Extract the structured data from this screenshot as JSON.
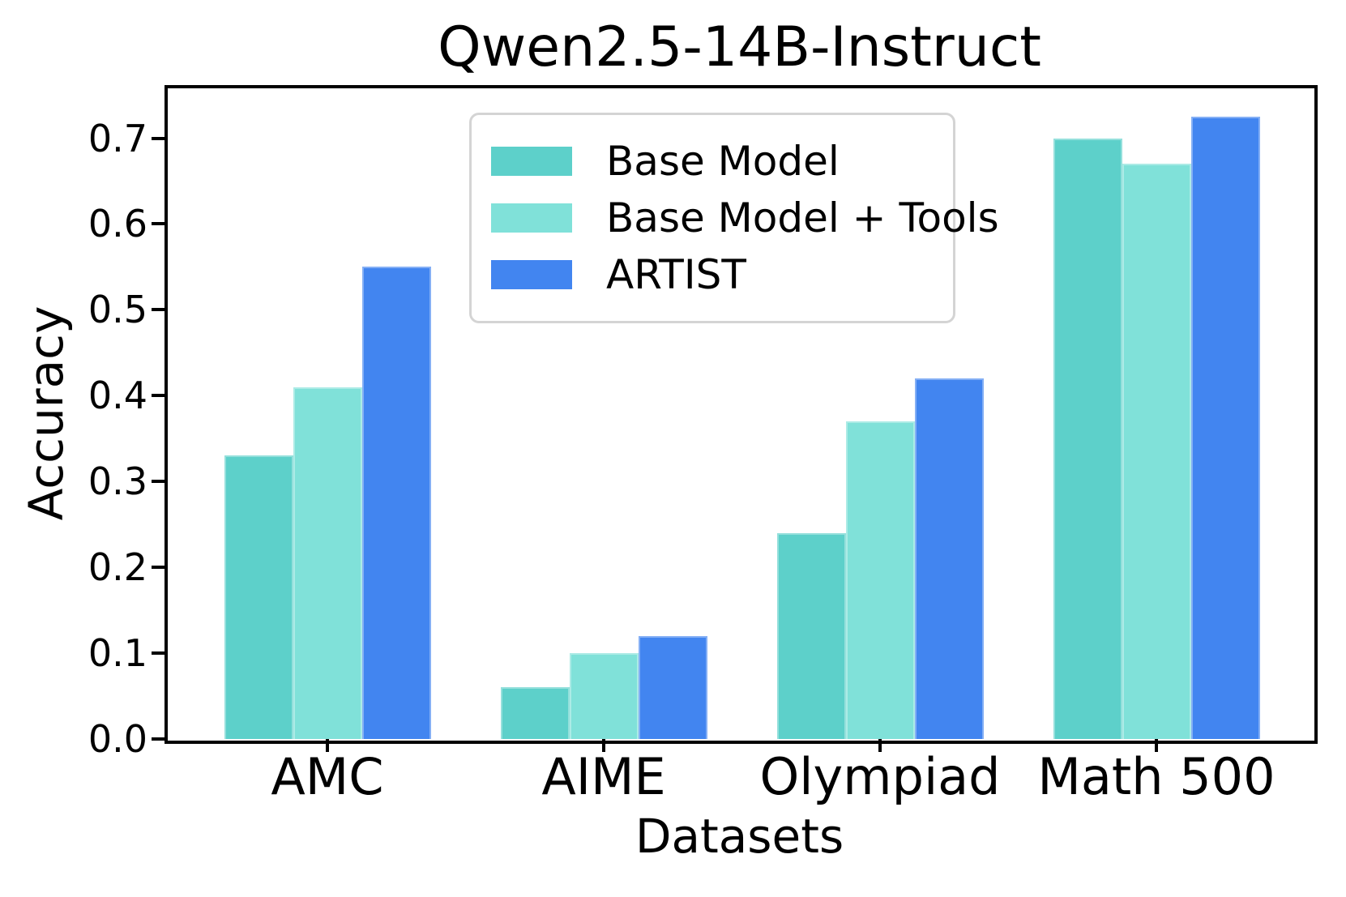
{
  "chart_data": {
    "type": "bar",
    "title": "Qwen2.5-14B-Instruct",
    "xlabel": "Datasets",
    "ylabel": "Accuracy",
    "categories": [
      "AMC",
      "AIME",
      "Olympiad",
      "Math 500"
    ],
    "series": [
      {
        "name": "Base Model",
        "color": "#5dd0ca",
        "values": [
          0.33,
          0.06,
          0.24,
          0.7
        ]
      },
      {
        "name": "Base Model + Tools",
        "color": "#80e1d9",
        "values": [
          0.41,
          0.1,
          0.37,
          0.67
        ]
      },
      {
        "name": "ARTIST",
        "color": "#4285f0",
        "values": [
          0.55,
          0.12,
          0.42,
          0.725
        ]
      }
    ],
    "ylim": [
      0,
      0.76
    ],
    "yticks": [
      0.0,
      0.1,
      0.2,
      0.3,
      0.4,
      0.5,
      0.6,
      0.7
    ],
    "ytick_labels": [
      "0.0",
      "0.1",
      "0.2",
      "0.3",
      "0.4",
      "0.5",
      "0.6",
      "0.7"
    ],
    "grid": false,
    "legend_position": "upper left inside plot",
    "axis_color": "#000000",
    "background_color": "#ffffff"
  }
}
